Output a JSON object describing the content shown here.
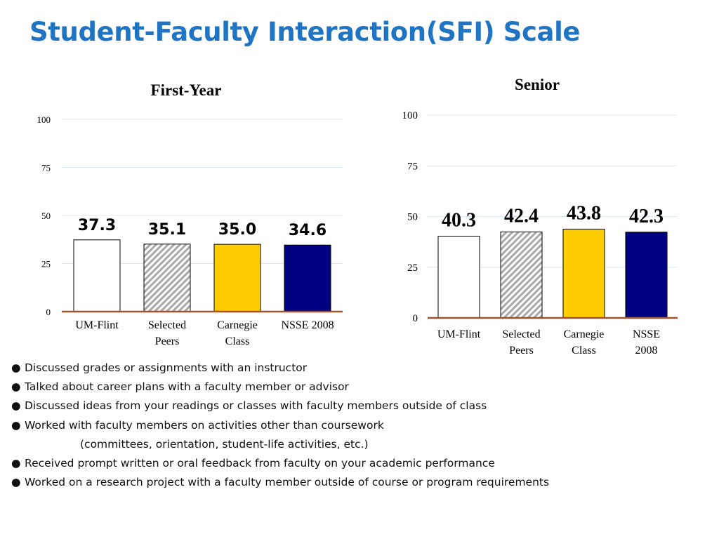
{
  "page_title": "Student-Faculty Interaction(SFI) Scale",
  "colors": {
    "title": "#1f74c4",
    "um_flint": "#ffffff",
    "selected_peers": "hatched gray",
    "carnegie_class": "#ffcc00",
    "nsse_2008": "#000080",
    "baseline": "#a0522d",
    "gridline": "#dce8f0"
  },
  "chart_data": [
    {
      "type": "bar",
      "title": "First-Year",
      "categories": [
        "UM-Flint",
        "Selected Peers",
        "Carnegie Class",
        "NSSE 2008"
      ],
      "values": [
        37.3,
        35.1,
        35.0,
        34.6
      ],
      "value_labels": [
        "37.3",
        "35.1",
        "35.0",
        "34.6"
      ],
      "yticks": [
        "0",
        "25",
        "50",
        "75",
        "100"
      ],
      "ylim": [
        0,
        100
      ],
      "grid": true,
      "legend": "none"
    },
    {
      "type": "bar",
      "title": "Senior",
      "categories": [
        "UM-Flint",
        "Selected Peers",
        "Carnegie Class",
        "NSSE 2008"
      ],
      "values": [
        40.3,
        42.4,
        43.8,
        42.3
      ],
      "value_labels": [
        "40.3",
        "42.4",
        "43.8",
        "42.3"
      ],
      "yticks": [
        "0",
        "25",
        "50",
        "75",
        "100"
      ],
      "ylim": [
        0,
        100
      ],
      "grid": true,
      "legend": "none"
    }
  ],
  "bullets": [
    {
      "bullet": "●",
      "text": "Discussed grades or assignments with an instructor"
    },
    {
      "bullet": "●",
      "text": "Talked about career plans with a faculty member or advisor"
    },
    {
      "bullet": "●",
      "text": "Discussed ideas from your readings or classes with faculty members outside of class"
    },
    {
      "bullet": "●",
      "text": "Worked with faculty members on activities other than coursework"
    },
    {
      "bullet": "",
      "text": "(committees, orientation, student-life activities, etc.)"
    },
    {
      "bullet": "●",
      "text": "Received prompt written or oral feedback from faculty on your academic performance"
    },
    {
      "bullet": "●",
      "text": "Worked on a research project with a faculty member outside of course or program requirements"
    }
  ]
}
